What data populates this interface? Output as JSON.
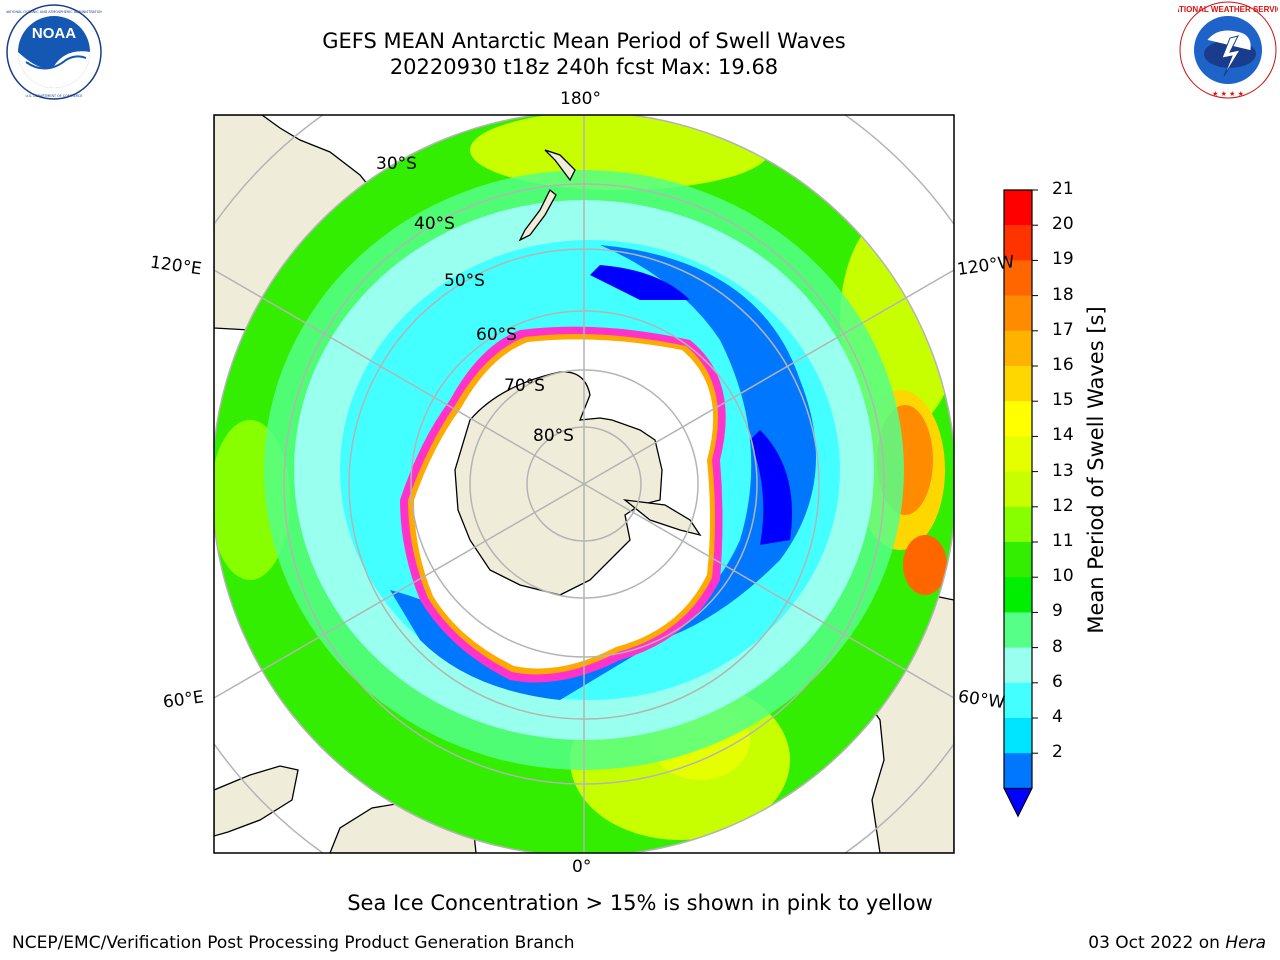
{
  "header": {
    "title_line1": "GEFS MEAN Antarctic Mean Period of Swell Waves",
    "title_line2": "20220930 t18z 240h fcst   Max: 19.68"
  },
  "logos": {
    "noaa": {
      "icon": "noaa-logo",
      "text": "NOAA",
      "ring_text": "NATIONAL OCEANIC AND ATMOSPHERIC ADMINISTRATION  U.S. DEPARTMENT OF COMMERCE"
    },
    "nws": {
      "icon": "nws-logo",
      "ring_text": "NATIONAL WEATHER SERVICE"
    }
  },
  "map": {
    "projection": "south-polar-stereographic",
    "lon_labels": {
      "top": "180°",
      "upper_left": "120°E",
      "upper_right": "120°W",
      "lower_left": "60°E",
      "lower_right": "60°W",
      "bottom": "0°"
    },
    "lat_labels": [
      "30°S",
      "40°S",
      "50°S",
      "60°S",
      "70°S",
      "80°S"
    ],
    "colors": {
      "land": "#efedd9",
      "coast": "#000000",
      "grid": "#b4b4b4",
      "ice_edge": "#ff33cc",
      "ice_inner": "#ffaa00"
    }
  },
  "colorbar": {
    "label": "Mean Period of Swell Waves [s]",
    "ticks": [
      "21",
      "20",
      "19",
      "18",
      "17",
      "16",
      "15",
      "14",
      "13",
      "12",
      "11",
      "10",
      "9",
      "8",
      "6",
      "4",
      "2"
    ],
    "colors_top_to_bottom": [
      "#ff0000",
      "#ff3300",
      "#ff6600",
      "#ff8c00",
      "#ffb300",
      "#ffd700",
      "#ffff00",
      "#e6ff00",
      "#c8ff00",
      "#88ff00",
      "#33ee00",
      "#00ee00",
      "#55ff88",
      "#99ffee",
      "#44ffff",
      "#00e5ff",
      "#0077ff"
    ],
    "under_color": "#0000ff"
  },
  "footnote": "Sea Ice Concentration > 15% is shown in pink to yellow",
  "footer": {
    "left": "NCEP/EMC/Verification Post Processing Product Generation Branch",
    "right_date": "03 Oct 2022 on",
    "right_host": "Hera"
  }
}
